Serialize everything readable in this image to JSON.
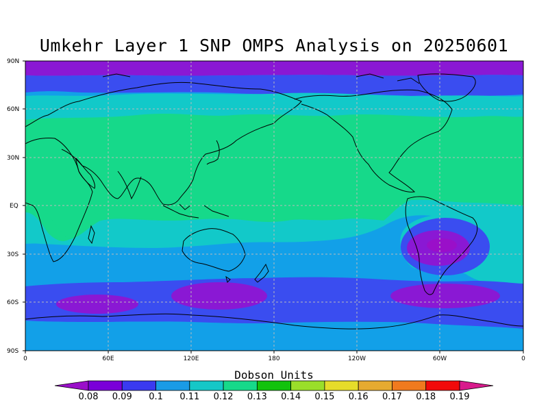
{
  "title": "Umkehr Layer 1 SNP OMPS Analysis on 20250601",
  "colorbar": {
    "title": "Dobson Units",
    "ticks": [
      "0.08",
      "0.09",
      "0.1",
      "0.11",
      "0.12",
      "0.13",
      "0.14",
      "0.15",
      "0.16",
      "0.17",
      "0.18",
      "0.19"
    ],
    "colors": [
      "#9a0fc9",
      "#7a00d9",
      "#3a3af0",
      "#1a9be6",
      "#15c7c7",
      "#16d98a",
      "#12c20c",
      "#9ade2a",
      "#e6dc2a",
      "#e6aa30",
      "#f07a1e",
      "#f20a0a",
      "#d81a8c"
    ]
  },
  "axes": {
    "lat_labels": [
      "90N",
      "60N",
      "30N",
      "EQ",
      "30S",
      "60S",
      "90S"
    ],
    "lon_labels": [
      "0",
      "60E",
      "120E",
      "180",
      "120W",
      "60W",
      "0"
    ]
  },
  "map_colors": {
    "purple": "#8a18d4",
    "blue": "#3a4df0",
    "lightblue": "#12a0e8",
    "cyan": "#12c9c9",
    "green": "#16d98a",
    "land_outline": "#000000",
    "grid": "#bbbbbb"
  }
}
